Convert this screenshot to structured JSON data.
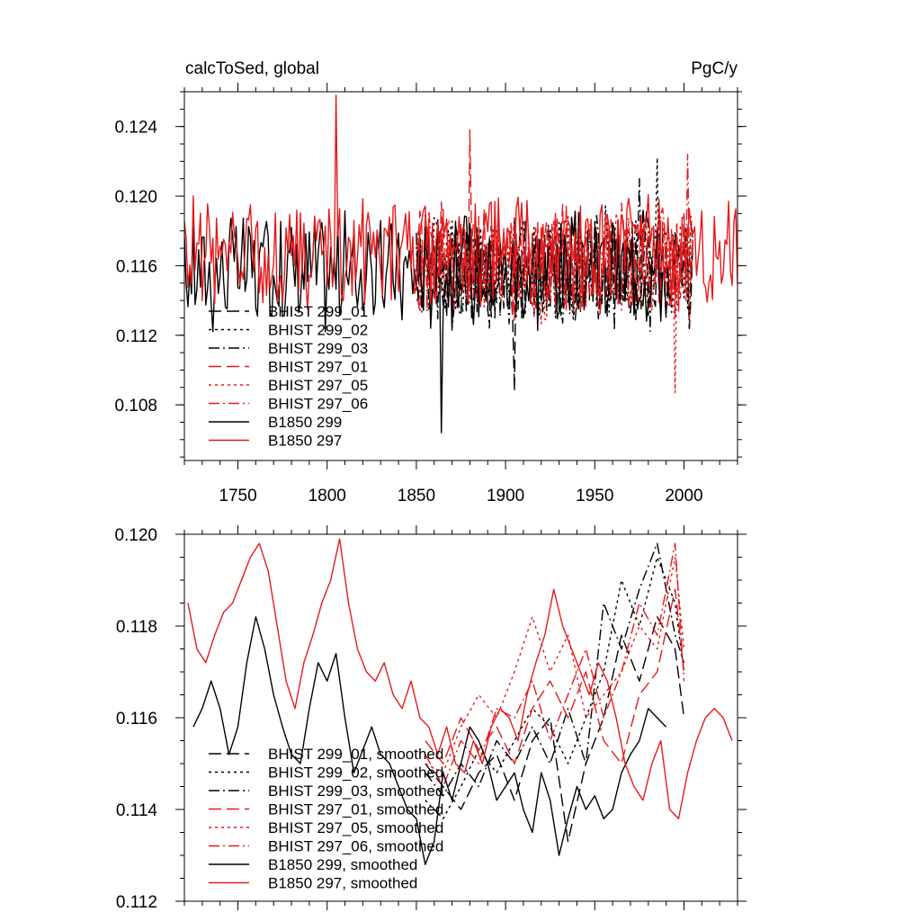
{
  "chart_data": [
    {
      "type": "line",
      "title_left": "calcToSed, global",
      "title_right": "PgC/y",
      "xlim": [
        1720,
        2030
      ],
      "ylim": [
        0.1048,
        0.126
      ],
      "x_ticks": [
        1750,
        1800,
        1850,
        1900,
        1950,
        2000
      ],
      "x_tick_labels": [
        "1750",
        "1800",
        "1850",
        "1900",
        "1950",
        "2000"
      ],
      "y_ticks": [
        0.108,
        0.112,
        0.116,
        0.12,
        0.124
      ],
      "y_tick_labels": [
        "0.108",
        "0.112",
        "0.116",
        "0.120",
        "0.124"
      ],
      "legend": [
        "BHIST 299_01",
        "BHIST 299_02",
        "BHIST 299_03",
        "BHIST 297_01",
        "BHIST 297_05",
        "BHIST 297_06",
        "B1850 299",
        "B1850 297"
      ],
      "series": [
        {
          "name": "BHIST 299_01",
          "color": "#000000",
          "dash": "long",
          "x_start": 1850,
          "x_end": 2005,
          "mean": 0.1158,
          "amp": 0.0036,
          "seed": 11,
          "peak": {
            "x": 1905,
            "y": 0.1088
          }
        },
        {
          "name": "BHIST 299_02",
          "color": "#000000",
          "dash": "short",
          "x_start": 1850,
          "x_end": 2005,
          "mean": 0.116,
          "amp": 0.0036,
          "seed": 12,
          "peak": {
            "x": 1985,
            "y": 0.1222
          }
        },
        {
          "name": "BHIST 299_03",
          "color": "#000000",
          "dash": "dashdot",
          "x_start": 1850,
          "x_end": 2005,
          "mean": 0.1158,
          "amp": 0.0036,
          "seed": 13,
          "peak": {
            "x": 1975,
            "y": 0.121
          }
        },
        {
          "name": "BHIST 297_01",
          "color": "#e41a1c",
          "dash": "long",
          "x_start": 1850,
          "x_end": 2005,
          "mean": 0.1162,
          "amp": 0.0036,
          "seed": 14,
          "peak": {
            "x": 1880,
            "y": 0.1238
          }
        },
        {
          "name": "BHIST 297_05",
          "color": "#e41a1c",
          "dash": "short",
          "x_start": 1850,
          "x_end": 2005,
          "mean": 0.116,
          "amp": 0.0036,
          "seed": 15,
          "peak": {
            "x": 1995,
            "y": 0.1087
          }
        },
        {
          "name": "BHIST 297_06",
          "color": "#e41a1c",
          "dash": "dashdot",
          "x_start": 1850,
          "x_end": 2005,
          "mean": 0.1162,
          "amp": 0.0036,
          "seed": 16,
          "peak": {
            "x": 2002,
            "y": 0.1224
          }
        },
        {
          "name": "B1850 299",
          "color": "#000000",
          "dash": "solid",
          "x_start": 1720,
          "x_end": 1990,
          "mean": 0.1157,
          "amp": 0.0038,
          "seed": 17,
          "peak": {
            "x": 1864,
            "y": 0.1064
          }
        },
        {
          "name": "B1850 297",
          "color": "#e41a1c",
          "dash": "solid",
          "x_start": 1720,
          "x_end": 2030,
          "mean": 0.1168,
          "amp": 0.0036,
          "seed": 18,
          "peak": {
            "x": 1805,
            "y": 0.1258
          }
        }
      ]
    },
    {
      "type": "line",
      "xlim": [
        1720,
        2030
      ],
      "ylim": [
        0.112,
        0.12
      ],
      "x_ticks": [
        1750,
        1800,
        1850,
        1900,
        1950,
        2000
      ],
      "y_ticks": [
        0.112,
        0.114,
        0.116,
        0.118,
        0.12
      ],
      "y_tick_labels": [
        "0.112",
        "0.114",
        "0.116",
        "0.118",
        "0.120"
      ],
      "legend": [
        "BHIST 299_01, smoothed",
        "BHIST 299_02, smoothed",
        "BHIST 299_03, smoothed",
        "BHIST 297_01, smoothed",
        "BHIST 297_05, smoothed",
        "BHIST 297_06, smoothed",
        "B1850 299, smoothed",
        "B1850 297, smoothed"
      ],
      "series": [
        {
          "name": "BHIST 299_01, smoothed",
          "color": "#000000",
          "dash": "long",
          "x": [
            1855,
            1865,
            1875,
            1885,
            1895,
            1905,
            1915,
            1925,
            1935,
            1945,
            1955,
            1965,
            1975,
            1985,
            1995,
            2000
          ],
          "y": [
            0.115,
            0.1145,
            0.114,
            0.1148,
            0.1152,
            0.1142,
            0.1155,
            0.116,
            0.1133,
            0.115,
            0.116,
            0.1178,
            0.1168,
            0.1182,
            0.1175,
            0.116
          ]
        },
        {
          "name": "BHIST 299_02, smoothed",
          "color": "#000000",
          "dash": "short",
          "x": [
            1855,
            1865,
            1875,
            1885,
            1895,
            1905,
            1915,
            1925,
            1935,
            1945,
            1955,
            1965,
            1975,
            1985,
            1995,
            2000
          ],
          "y": [
            0.1142,
            0.1138,
            0.1145,
            0.1153,
            0.1148,
            0.1155,
            0.1162,
            0.1158,
            0.115,
            0.116,
            0.117,
            0.119,
            0.118,
            0.1195,
            0.1185,
            0.117
          ]
        },
        {
          "name": "BHIST 299_03, smoothed",
          "color": "#000000",
          "dash": "dashdot",
          "x": [
            1855,
            1865,
            1875,
            1885,
            1895,
            1905,
            1915,
            1925,
            1935,
            1945,
            1955,
            1965,
            1975,
            1985,
            1995,
            2000
          ],
          "y": [
            0.1148,
            0.1143,
            0.115,
            0.1145,
            0.1155,
            0.115,
            0.1158,
            0.115,
            0.1162,
            0.115,
            0.1185,
            0.1175,
            0.1188,
            0.1198,
            0.1178,
            0.1172
          ]
        },
        {
          "name": "BHIST 297_01, smoothed",
          "color": "#e41a1c",
          "dash": "long",
          "x": [
            1855,
            1865,
            1875,
            1885,
            1895,
            1905,
            1915,
            1925,
            1935,
            1945,
            1955,
            1965,
            1975,
            1985,
            1995,
            2000
          ],
          "y": [
            0.1155,
            0.115,
            0.116,
            0.1153,
            0.1158,
            0.115,
            0.1162,
            0.1168,
            0.116,
            0.117,
            0.1155,
            0.115,
            0.1165,
            0.117,
            0.1188,
            0.117
          ]
        },
        {
          "name": "BHIST 297_05, smoothed",
          "color": "#e41a1c",
          "dash": "short",
          "x": [
            1855,
            1865,
            1875,
            1885,
            1895,
            1905,
            1915,
            1925,
            1935,
            1945,
            1955,
            1965,
            1975,
            1985,
            1995,
            2000
          ],
          "y": [
            0.115,
            0.1148,
            0.1158,
            0.1165,
            0.116,
            0.117,
            0.1182,
            0.117,
            0.1178,
            0.116,
            0.1165,
            0.117,
            0.118,
            0.1175,
            0.1195,
            0.1175
          ]
        },
        {
          "name": "BHIST 297_06, smoothed",
          "color": "#e41a1c",
          "dash": "dashdot",
          "x": [
            1855,
            1865,
            1875,
            1885,
            1895,
            1905,
            1915,
            1925,
            1935,
            1945,
            1955,
            1965,
            1975,
            1985,
            1995,
            2000
          ],
          "y": [
            0.1152,
            0.1145,
            0.1155,
            0.115,
            0.1162,
            0.116,
            0.1168,
            0.1155,
            0.1165,
            0.1175,
            0.116,
            0.117,
            0.1185,
            0.1178,
            0.1198,
            0.1168
          ]
        },
        {
          "name": "B1850 299, smoothed",
          "color": "#000000",
          "dash": "solid",
          "x": [
            1725,
            1730,
            1735,
            1740,
            1745,
            1750,
            1755,
            1760,
            1765,
            1770,
            1775,
            1780,
            1785,
            1790,
            1795,
            1800,
            1805,
            1810,
            1815,
            1820,
            1825,
            1830,
            1835,
            1840,
            1845,
            1850,
            1855,
            1860,
            1865,
            1870,
            1875,
            1880,
            1885,
            1890,
            1895,
            1900,
            1905,
            1910,
            1915,
            1920,
            1925,
            1930,
            1935,
            1940,
            1945,
            1950,
            1955,
            1960,
            1965,
            1970,
            1975,
            1980,
            1985,
            1990
          ],
          "y": [
            0.1158,
            0.1162,
            0.1168,
            0.1162,
            0.1152,
            0.1158,
            0.1172,
            0.1182,
            0.1175,
            0.1165,
            0.1158,
            0.1152,
            0.115,
            0.1162,
            0.1172,
            0.1168,
            0.1174,
            0.116,
            0.1148,
            0.1153,
            0.1158,
            0.1152,
            0.115,
            0.1145,
            0.114,
            0.1138,
            0.1128,
            0.1133,
            0.1148,
            0.1142,
            0.115,
            0.1158,
            0.1155,
            0.115,
            0.1142,
            0.1145,
            0.1148,
            0.114,
            0.1135,
            0.1148,
            0.1142,
            0.113,
            0.1138,
            0.1145,
            0.114,
            0.1143,
            0.1138,
            0.114,
            0.1148,
            0.1152,
            0.1155,
            0.1162,
            0.116,
            0.1158
          ]
        },
        {
          "name": "B1850 297, smoothed",
          "color": "#e41a1c",
          "dash": "solid",
          "x": [
            1722,
            1727,
            1732,
            1737,
            1742,
            1747,
            1752,
            1757,
            1762,
            1767,
            1772,
            1777,
            1782,
            1787,
            1792,
            1797,
            1802,
            1807,
            1812,
            1817,
            1822,
            1827,
            1832,
            1837,
            1842,
            1847,
            1852,
            1857,
            1862,
            1867,
            1872,
            1877,
            1882,
            1887,
            1892,
            1897,
            1902,
            1907,
            1912,
            1917,
            1922,
            1927,
            1932,
            1937,
            1942,
            1947,
            1952,
            1957,
            1962,
            1967,
            1972,
            1977,
            1982,
            1987,
            1992,
            1997,
            2002,
            2007,
            2012,
            2017,
            2022,
            2027
          ],
          "y": [
            0.1185,
            0.1175,
            0.1172,
            0.1178,
            0.1183,
            0.1185,
            0.119,
            0.1195,
            0.1198,
            0.1192,
            0.118,
            0.1168,
            0.1162,
            0.1172,
            0.1178,
            0.1185,
            0.119,
            0.1199,
            0.1185,
            0.1175,
            0.117,
            0.1168,
            0.1172,
            0.1165,
            0.1162,
            0.1168,
            0.116,
            0.1158,
            0.1152,
            0.1158,
            0.115,
            0.1148,
            0.1155,
            0.115,
            0.1158,
            0.1162,
            0.116,
            0.1155,
            0.1165,
            0.1172,
            0.1178,
            0.1188,
            0.118,
            0.1175,
            0.117,
            0.1165,
            0.1172,
            0.1168,
            0.116,
            0.115,
            0.1145,
            0.1142,
            0.115,
            0.1155,
            0.114,
            0.1138,
            0.1148,
            0.1155,
            0.116,
            0.1162,
            0.116,
            0.1155
          ]
        }
      ]
    }
  ]
}
